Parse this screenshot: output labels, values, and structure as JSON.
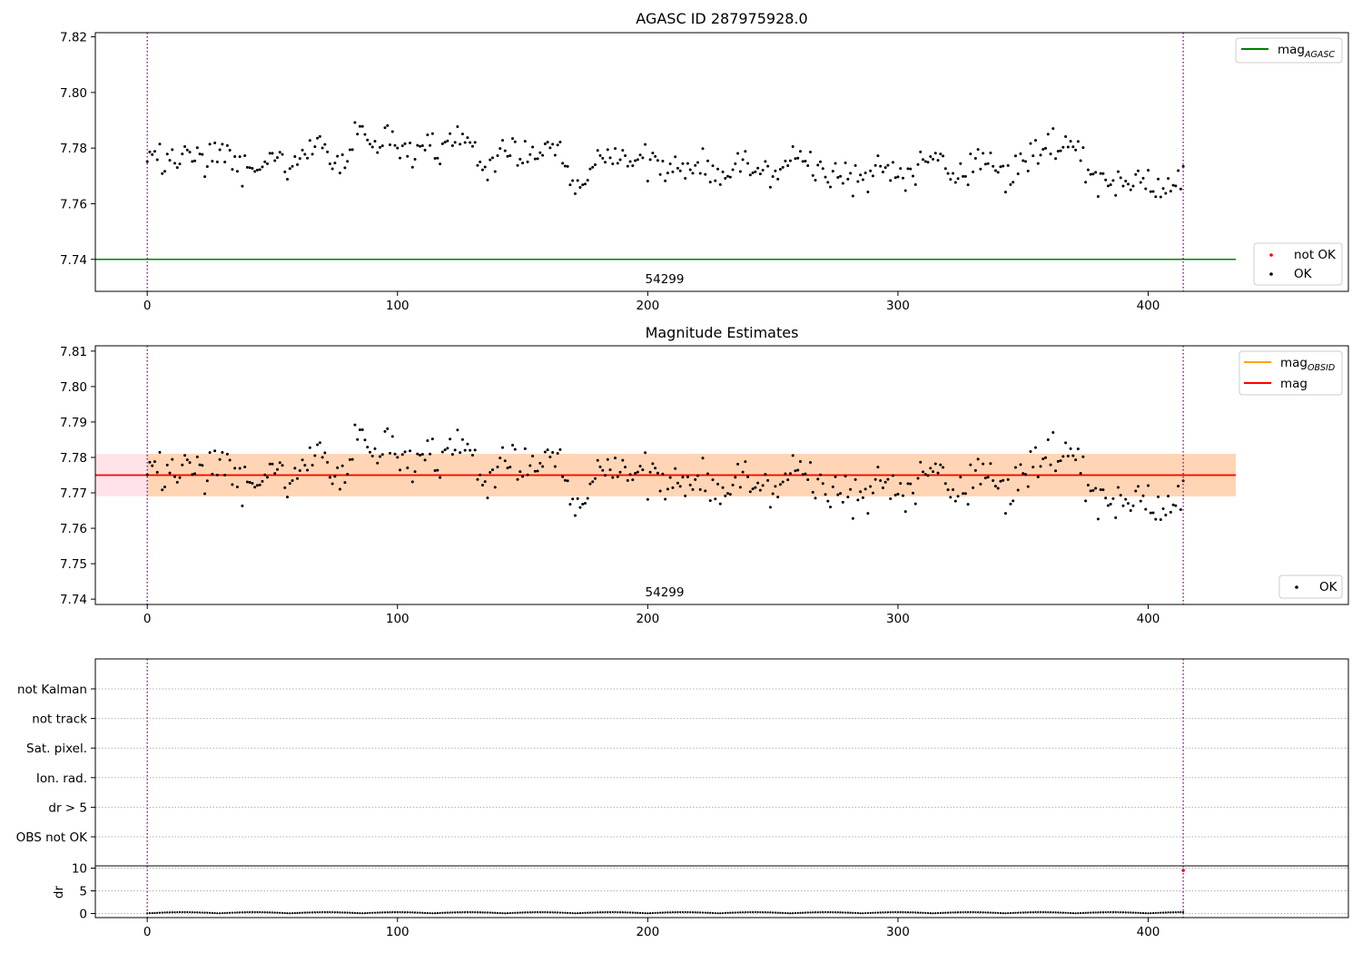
{
  "chart_data": [
    {
      "type": "scatter",
      "title": "AGASC ID 287975928.0",
      "annotation": "54299",
      "xlim": [
        -20.75,
        480
      ],
      "ylim": [
        7.7285,
        7.8215
      ],
      "xticks": [
        0,
        100,
        200,
        300,
        400
      ],
      "yticks": [
        7.74,
        7.76,
        7.78,
        7.8,
        7.82
      ],
      "ytick_labels": [
        "7.74",
        "7.76",
        "7.78",
        "7.80",
        "7.82"
      ],
      "vlines": [
        0,
        414
      ],
      "hlines": [
        {
          "name": "mag_AGASC",
          "y": 7.74,
          "x_range": [
            -20.75,
            435
          ],
          "color": "#008000"
        }
      ],
      "legend_lines": [
        {
          "label": "mag",
          "subscript": "AGASC",
          "color": "#008000"
        }
      ],
      "legend_points": [
        {
          "label": "not OK",
          "color": "#ff0000"
        },
        {
          "label": "OK",
          "color": "#000000"
        }
      ],
      "series_ref": "mag_series"
    },
    {
      "type": "scatter",
      "title": "Magnitude Estimates",
      "annotation": "54299",
      "xlim": [
        -20.75,
        480
      ],
      "ylim": [
        7.7385,
        7.8115
      ],
      "xticks": [
        0,
        100,
        200,
        300,
        400
      ],
      "yticks": [
        7.74,
        7.75,
        7.76,
        7.77,
        7.78,
        7.79,
        7.8,
        7.81
      ],
      "ytick_labels": [
        "7.74",
        "7.75",
        "7.76",
        "7.77",
        "7.78",
        "7.79",
        "7.80",
        "7.81"
      ],
      "vlines": [
        0,
        414
      ],
      "bands": [
        {
          "y0": 7.769,
          "y1": 7.781,
          "x_range": [
            -20.75,
            435
          ],
          "color": "#ffc0cb",
          "opacity": 0.45
        },
        {
          "y0": 7.769,
          "y1": 7.781,
          "x_range": [
            0,
            435
          ],
          "color": "#ffa500",
          "opacity": 0.22
        }
      ],
      "hlines": [
        {
          "name": "mag_OBSID",
          "y": 7.775,
          "x_range": [
            0,
            435
          ],
          "color": "#ffa500"
        },
        {
          "name": "mag",
          "y": 7.775,
          "x_range": [
            -20.75,
            435
          ],
          "color": "#ff0000"
        }
      ],
      "legend_lines": [
        {
          "label": "mag",
          "subscript": "OBSID",
          "color": "#ffa500"
        },
        {
          "label": "mag",
          "subscript": "",
          "color": "#ff0000"
        }
      ],
      "legend_points": [
        {
          "label": "OK",
          "color": "#000000"
        }
      ],
      "series_ref": "mag_series"
    },
    {
      "type": "scatter",
      "title": "",
      "flag_labels": [
        "not Kalman",
        "not track",
        "Sat. pixel.",
        "Ion. rad.",
        "dr > 5",
        "OBS not OK"
      ],
      "xlim": [
        -20.75,
        480
      ],
      "xticks": [
        0,
        100,
        200,
        300,
        400
      ],
      "vlines": [
        0,
        414
      ],
      "dr": {
        "ylabel": "dr",
        "ylim": [
          -0.9,
          10.5
        ],
        "yticks": [
          0,
          5,
          10
        ],
        "ytick_labels": [
          "0",
          "5",
          "10"
        ],
        "outlier": {
          "x": 414,
          "y": 9.5,
          "color": "#ff0000"
        }
      }
    }
  ],
  "mag_series": {
    "x_start": 0,
    "x_end": 414,
    "anchors": [
      [
        0,
        7.776
      ],
      [
        4,
        7.7755
      ],
      [
        8,
        7.776
      ],
      [
        12,
        7.7765
      ],
      [
        16,
        7.774
      ],
      [
        20,
        7.7785
      ],
      [
        24,
        7.7775
      ],
      [
        28,
        7.777
      ],
      [
        32,
        7.7785
      ],
      [
        36,
        7.773
      ],
      [
        40,
        7.7715
      ],
      [
        44,
        7.773
      ],
      [
        48,
        7.778
      ],
      [
        52,
        7.777
      ],
      [
        56,
        7.77
      ],
      [
        60,
        7.773
      ],
      [
        64,
        7.7775
      ],
      [
        68,
        7.7855
      ],
      [
        72,
        7.778
      ],
      [
        76,
        7.774
      ],
      [
        80,
        7.777
      ],
      [
        84,
        7.785
      ],
      [
        88,
        7.7845
      ],
      [
        92,
        7.782
      ],
      [
        96,
        7.786
      ],
      [
        100,
        7.777
      ],
      [
        104,
        7.778
      ],
      [
        108,
        7.778
      ],
      [
        112,
        7.779
      ],
      [
        116,
        7.78
      ],
      [
        120,
        7.782
      ],
      [
        124,
        7.782
      ],
      [
        128,
        7.783
      ],
      [
        132,
        7.778
      ],
      [
        136,
        7.7745
      ],
      [
        140,
        7.776
      ],
      [
        144,
        7.783
      ],
      [
        148,
        7.777
      ],
      [
        152,
        7.7775
      ],
      [
        156,
        7.78
      ],
      [
        160,
        7.781
      ],
      [
        164,
        7.7795
      ],
      [
        168,
        7.772
      ],
      [
        172,
        7.77
      ],
      [
        176,
        7.769
      ],
      [
        180,
        7.7755
      ],
      [
        184,
        7.777
      ],
      [
        188,
        7.7775
      ],
      [
        192,
        7.774
      ],
      [
        196,
        7.7755
      ],
      [
        200,
        7.776
      ],
      [
        204,
        7.773
      ],
      [
        208,
        7.77
      ],
      [
        212,
        7.771
      ],
      [
        216,
        7.775
      ],
      [
        220,
        7.774
      ],
      [
        224,
        7.774
      ],
      [
        228,
        7.77
      ],
      [
        232,
        7.768
      ],
      [
        236,
        7.7745
      ],
      [
        240,
        7.774
      ],
      [
        244,
        7.7735
      ],
      [
        248,
        7.771
      ],
      [
        252,
        7.7705
      ],
      [
        256,
        7.775
      ],
      [
        260,
        7.7775
      ],
      [
        264,
        7.7745
      ],
      [
        268,
        7.7725
      ],
      [
        272,
        7.7705
      ],
      [
        276,
        7.771
      ],
      [
        280,
        7.7705
      ],
      [
        284,
        7.7695
      ],
      [
        288,
        7.771
      ],
      [
        292,
        7.772
      ],
      [
        296,
        7.7705
      ],
      [
        300,
        7.7705
      ],
      [
        304,
        7.7705
      ],
      [
        308,
        7.7725
      ],
      [
        312,
        7.776
      ],
      [
        316,
        7.777
      ],
      [
        320,
        7.772
      ],
      [
        324,
        7.768
      ],
      [
        328,
        7.772
      ],
      [
        332,
        7.7775
      ],
      [
        336,
        7.775
      ],
      [
        340,
        7.7715
      ],
      [
        344,
        7.7695
      ],
      [
        348,
        7.771
      ],
      [
        352,
        7.776
      ],
      [
        356,
        7.78
      ],
      [
        360,
        7.781
      ],
      [
        364,
        7.7805
      ],
      [
        368,
        7.7785
      ],
      [
        372,
        7.7795
      ],
      [
        376,
        7.773
      ],
      [
        380,
        7.7695
      ],
      [
        384,
        7.768
      ],
      [
        388,
        7.7655
      ],
      [
        392,
        7.7685
      ],
      [
        396,
        7.772
      ],
      [
        400,
        7.769
      ],
      [
        404,
        7.765
      ],
      [
        408,
        7.7645
      ],
      [
        412,
        7.7675
      ],
      [
        414,
        7.7695
      ]
    ],
    "noise": 0.0042
  }
}
